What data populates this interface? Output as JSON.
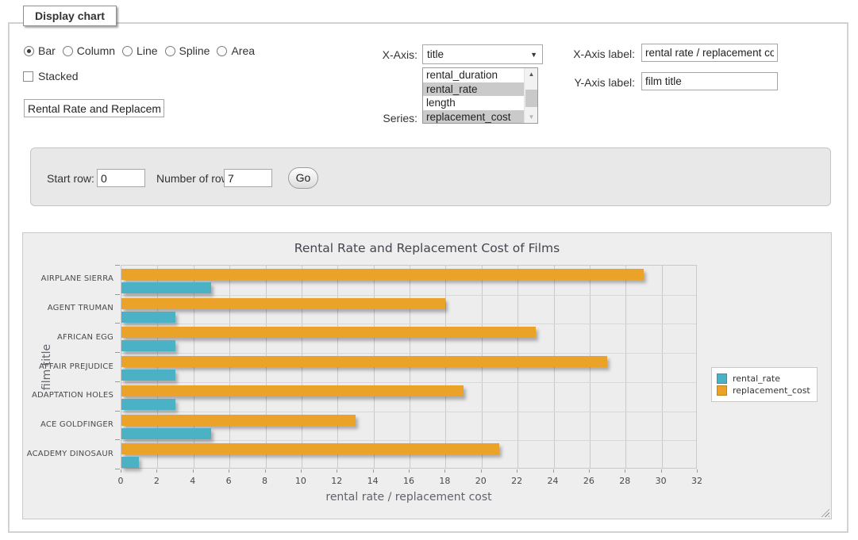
{
  "fieldset": {
    "legend": "Display chart"
  },
  "chart_type": {
    "options": [
      {
        "label": "Bar",
        "selected": true
      },
      {
        "label": "Column",
        "selected": false
      },
      {
        "label": "Line",
        "selected": false
      },
      {
        "label": "Spline",
        "selected": false
      },
      {
        "label": "Area",
        "selected": false
      }
    ]
  },
  "stacked": {
    "label": "Stacked",
    "checked": false
  },
  "chart_title_input": {
    "value": "Rental Rate and Replacemer"
  },
  "x_axis_select": {
    "label": "X-Axis:",
    "value": "title"
  },
  "series_list": {
    "label": "Series:",
    "options": [
      {
        "label": "rental_duration",
        "selected": false
      },
      {
        "label": "rental_rate",
        "selected": true
      },
      {
        "label": "length",
        "selected": false
      },
      {
        "label": "replacement_cost",
        "selected": true
      }
    ]
  },
  "x_axis_label_input": {
    "label": "X-Axis label:",
    "value": "rental rate / replacement cost"
  },
  "y_axis_label_input": {
    "label": "Y-Axis label:",
    "value": "film title"
  },
  "row_controls": {
    "start_row_label": "Start row:",
    "start_row_value": "0",
    "rows_label": "Number of rows:",
    "rows_value": "7",
    "go_label": "Go"
  },
  "chart_data": {
    "type": "bar",
    "orientation": "horizontal",
    "title": "Rental Rate and Replacement Cost of Films",
    "categories": [
      "AIRPLANE SIERRA",
      "AGENT TRUMAN",
      "AFRICAN EGG",
      "AFFAIR PREJUDICE",
      "ADAPTATION HOLES",
      "ACE GOLDFINGER",
      "ACADEMY DINOSAUR"
    ],
    "series": [
      {
        "name": "rental_rate",
        "color": "#4bb2c5",
        "values": [
          4.99,
          2.99,
          2.99,
          2.99,
          2.99,
          4.99,
          0.99
        ]
      },
      {
        "name": "replacement_cost",
        "color": "#eaa228",
        "values": [
          28.99,
          17.99,
          22.99,
          26.99,
          18.99,
          12.99,
          20.99
        ]
      }
    ],
    "xlabel": "rental rate / replacement cost",
    "ylabel": "film title",
    "xlim": [
      0,
      32
    ],
    "xtick_step": 2,
    "grid": true,
    "legend_position": "right"
  },
  "ui_colors": {
    "selected_option_bg": "#cacaca",
    "panel_bg": "#e8e8e8",
    "chart_bg": "#eeeeee"
  }
}
